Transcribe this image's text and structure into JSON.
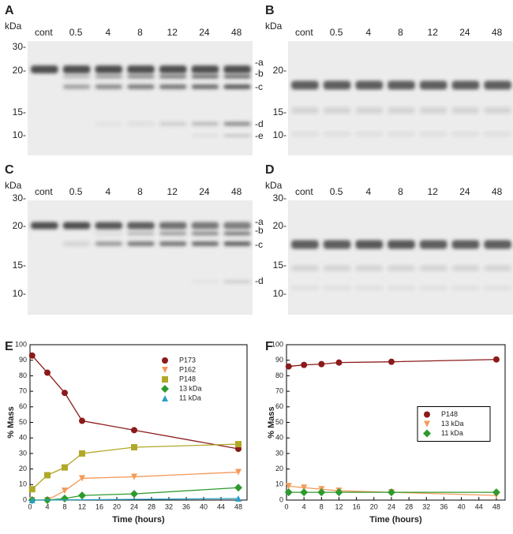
{
  "gels": [
    {
      "panel": "A",
      "unit": "kDa",
      "lanes": [
        "cont",
        "0.5",
        "4",
        "8",
        "12",
        "24",
        "48"
      ],
      "markers": [
        "30-",
        "20-",
        "15-",
        "10-"
      ],
      "band_labels": [
        "-a",
        "-b",
        "-c",
        "-d",
        "-e"
      ]
    },
    {
      "panel": "B",
      "unit": "kDa",
      "lanes": [
        "cont",
        "0.5",
        "4",
        "8",
        "12",
        "24",
        "48"
      ],
      "markers": [
        "20-",
        "15-",
        "10-"
      ]
    },
    {
      "panel": "C",
      "unit": "kDa",
      "lanes": [
        "cont",
        "0.5",
        "4",
        "8",
        "12",
        "24",
        "48"
      ],
      "markers": [
        "30-",
        "20-",
        "15-",
        "10-"
      ],
      "band_labels": [
        "-a",
        "-b",
        "-c",
        "-d"
      ]
    },
    {
      "panel": "D",
      "unit": "kDa",
      "lanes": [
        "cont",
        "0.5",
        "4",
        "8",
        "12",
        "24",
        "48"
      ],
      "markers": [
        "30-",
        "20-",
        "15-",
        "10-"
      ]
    }
  ],
  "chart_data": [
    {
      "type": "scatter",
      "panel": "E",
      "x_label": "Time (hours)",
      "y_label": "% Mass",
      "x": [
        0.5,
        4,
        8,
        12,
        24,
        48
      ],
      "series": [
        {
          "name": "P173",
          "color": "#8b1a1a",
          "marker": "circle",
          "values": [
            93,
            82,
            69,
            51,
            45,
            33
          ]
        },
        {
          "name": "P162",
          "color": "#f39a5a",
          "marker": "triangle-down",
          "values": [
            0,
            0,
            6,
            14,
            15,
            18
          ]
        },
        {
          "name": "P148",
          "color": "#b0a828",
          "marker": "square",
          "values": [
            7,
            16,
            21,
            30,
            34,
            36
          ]
        },
        {
          "name": "13 kDa",
          "color": "#2e9a2e",
          "marker": "diamond",
          "values": [
            0,
            0,
            1,
            3,
            4,
            8
          ]
        },
        {
          "name": "11 kDa",
          "color": "#2a9fc4",
          "marker": "triangle-up",
          "values": [
            0,
            null,
            null,
            null,
            null,
            1
          ]
        }
      ],
      "xlim": [
        0,
        50
      ],
      "xticks": [
        0,
        4,
        8,
        12,
        16,
        20,
        24,
        28,
        32,
        36,
        40,
        44,
        48
      ],
      "ylim": [
        0,
        100
      ],
      "yticks": [
        0,
        10,
        20,
        30,
        40,
        50,
        60,
        70,
        80,
        90,
        100
      ],
      "legend": "top-right",
      "legend_box": false
    },
    {
      "type": "scatter",
      "panel": "F",
      "x_label": "Time (hours)",
      "y_label": "% Mass",
      "x": [
        0.5,
        4,
        8,
        12,
        24,
        48
      ],
      "series": [
        {
          "name": "P148",
          "color": "#8b1a1a",
          "marker": "circle",
          "values": [
            86,
            87,
            87.5,
            88.5,
            89,
            90.5
          ]
        },
        {
          "name": "13 kDa",
          "color": "#f39a5a",
          "marker": "triangle-down",
          "values": [
            9,
            8,
            7,
            6,
            5,
            3
          ]
        },
        {
          "name": "11 kDa",
          "color": "#2e9a2e",
          "marker": "diamond",
          "values": [
            5,
            5,
            5,
            5,
            5,
            5
          ]
        }
      ],
      "xlim": [
        0,
        50
      ],
      "xticks": [
        0,
        4,
        8,
        12,
        16,
        20,
        24,
        28,
        32,
        36,
        40,
        44,
        48
      ],
      "ylim": [
        0,
        100
      ],
      "yticks": [
        0,
        10,
        20,
        30,
        40,
        50,
        60,
        70,
        80,
        90,
        100
      ],
      "legend": "center-right",
      "legend_box": true
    }
  ]
}
